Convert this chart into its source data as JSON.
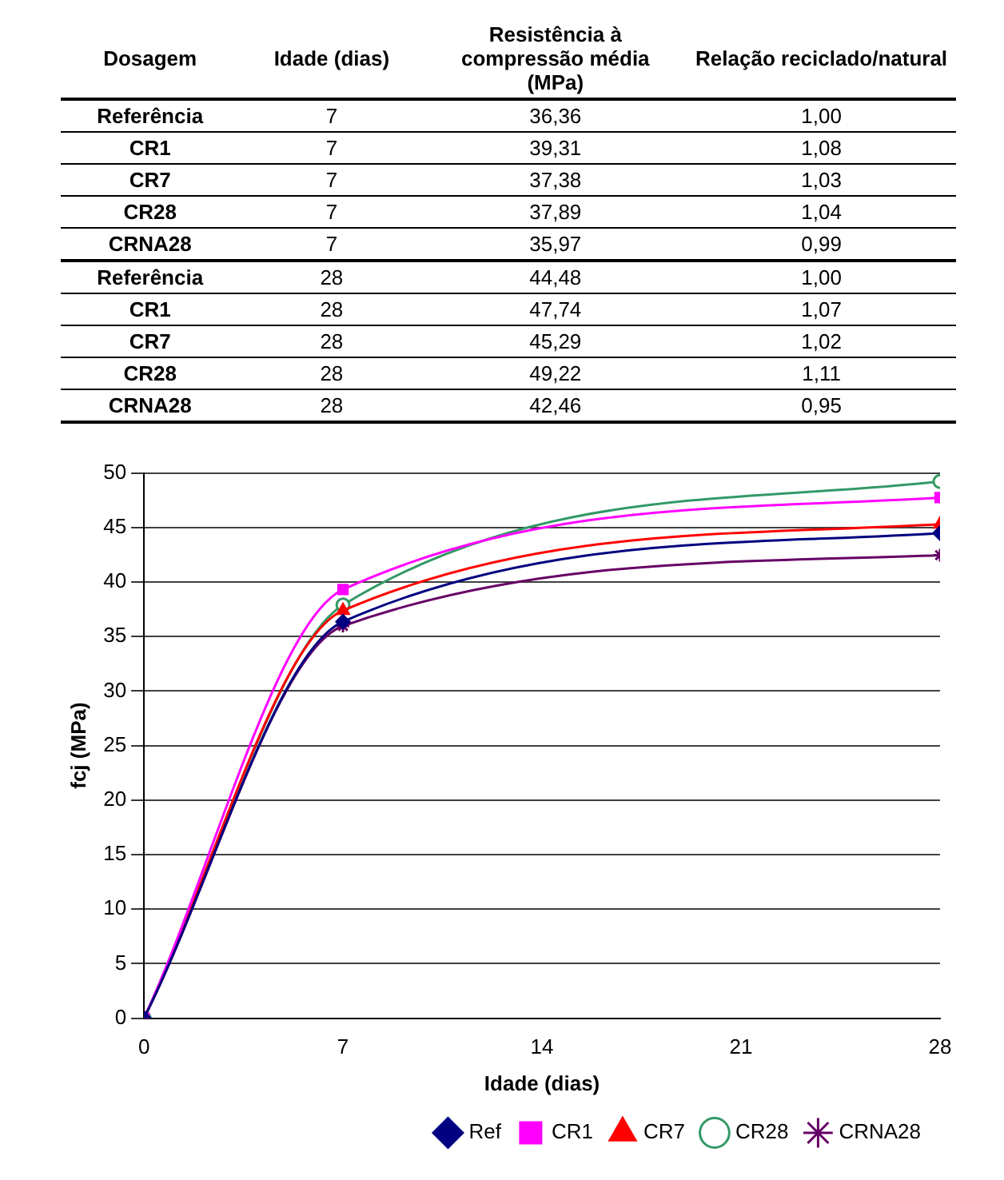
{
  "chart_data": [
    {
      "type": "other",
      "categories": [
        "Dosagem",
        "Idade (dias)",
        "Resistência à compressão média (MPa)",
        "Relação reciclado/natural"
      ],
      "annotations": [
        "Referência",
        "7",
        "36,36",
        "1,00",
        "CR1",
        "7",
        "39,31",
        "1,08",
        "CR7",
        "7",
        "37,38",
        "1,03",
        "CR28",
        "7",
        "37,89",
        "1,04",
        "CRNA28",
        "7",
        "35,97",
        "0,99",
        "Referência",
        "28",
        "44,48",
        "1,00",
        "CR1",
        "28",
        "47,74",
        "1,07",
        "CR7",
        "28",
        "45,29",
        "1,02",
        "CR28",
        "28",
        "49,22",
        "1,11",
        "CRNA28",
        "28",
        "42,46",
        "0,95"
      ]
    },
    {
      "type": "line",
      "xlabel": "Idade (dias)",
      "ylabel": "fcj (MPa)",
      "x": [
        0,
        7,
        28
      ],
      "series": [
        {
          "name": "Ref",
          "color": "#000080",
          "marker": "diamond",
          "values": [
            0,
            36.36,
            44.48
          ]
        },
        {
          "name": "CR1",
          "color": "#ff00ff",
          "marker": "square",
          "values": [
            0,
            39.31,
            47.74
          ]
        },
        {
          "name": "CR7",
          "color": "#ff0000",
          "marker": "triangle",
          "values": [
            0,
            37.38,
            45.29
          ]
        },
        {
          "name": "CR28",
          "color": "#339966",
          "marker": "circle",
          "values": [
            0,
            37.89,
            49.22
          ]
        },
        {
          "name": "CRNA28",
          "color": "#660066",
          "marker": "cross",
          "values": [
            0,
            35.97,
            42.46
          ]
        }
      ],
      "xlim": [
        0,
        28
      ],
      "xticks": [
        0,
        7,
        14,
        21,
        28
      ],
      "ylim": [
        0,
        50
      ],
      "yticks": [
        0,
        5,
        10,
        15,
        20,
        25,
        30,
        35,
        40,
        45,
        50
      ],
      "grid": "y",
      "legend": "bottom right"
    }
  ]
}
